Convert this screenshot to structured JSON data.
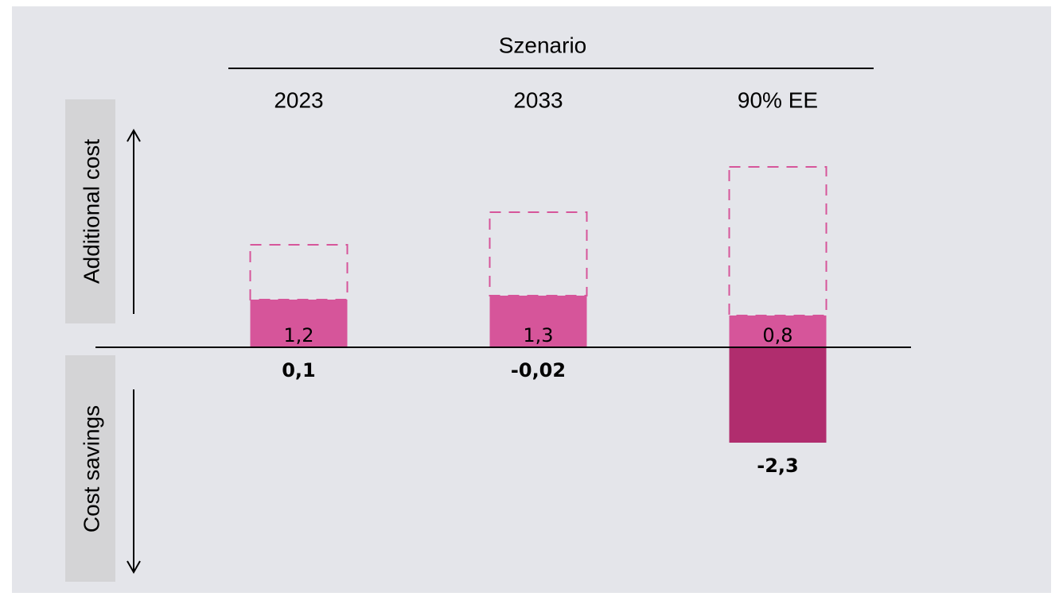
{
  "chart_data": {
    "type": "bar",
    "header": "Szenario",
    "up_label": "Additional cost",
    "down_label": "Cost savings",
    "categories": [
      "2023",
      "2033",
      "90% EE"
    ],
    "series": [
      {
        "color": "#d6559a",
        "values": [
          1.2,
          1.3,
          0.8
        ],
        "value_labels": [
          "1,2",
          "1,3",
          "0,8"
        ]
      },
      {
        "color": "#d6559a",
        "style": "dashed",
        "stacked": true,
        "values": [
          1.38,
          2.1,
          3.74
        ]
      },
      {
        "color": "#b02d6e",
        "values": [
          null,
          null,
          -2.4
        ]
      }
    ],
    "net": {
      "values": [
        0.1,
        -0.02,
        -2.3
      ],
      "value_labels": [
        "0,1",
        "-0,02",
        "-2,3"
      ]
    },
    "ylim": [
      -5.5,
      6
    ]
  }
}
